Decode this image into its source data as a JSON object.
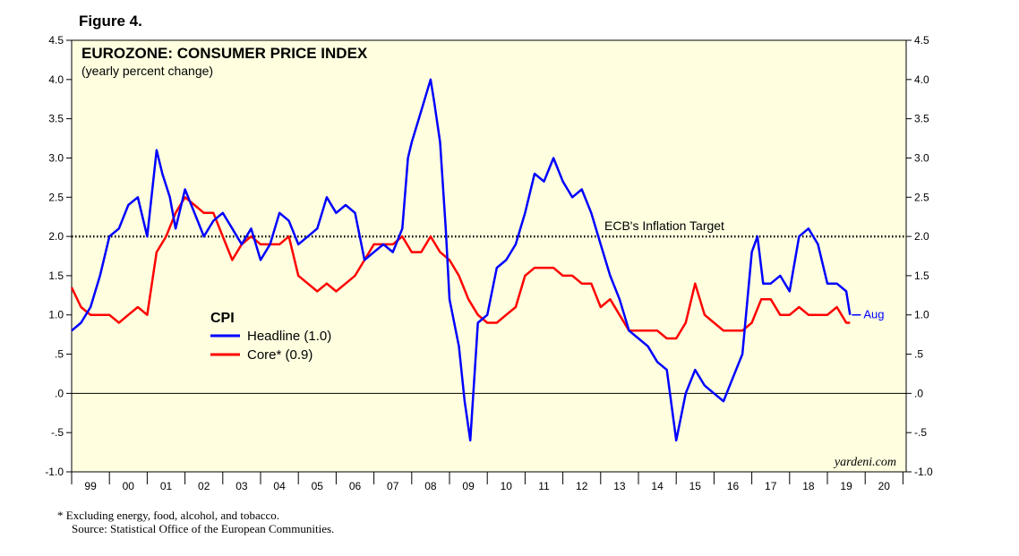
{
  "figure_label": "Figure 4.",
  "footnote": "*   Excluding energy, food, alcohol, and tobacco.",
  "source": "Source: Statistical Office of the European Communities.",
  "colors": {
    "plot_bg": "#FFFFE0",
    "headline": "#0000FF",
    "core": "#FF0000"
  },
  "chart_data": {
    "type": "line",
    "title": "EUROZONE: CONSUMER PRICE INDEX",
    "subtitle": "(yearly percent change)",
    "xlabel": "",
    "ylabel": "",
    "ylim": [
      -1.0,
      4.5
    ],
    "xlim": [
      1999.0,
      2020.75
    ],
    "y_ticks_left": [
      "4.5",
      "4.0",
      "3.5",
      "3.0",
      "2.5",
      "2.0",
      "1.5",
      "1.0",
      ".5",
      ".0",
      "-.5",
      "-1.0"
    ],
    "y_ticks_right": [
      "4.5",
      "4.0",
      "3.5",
      "3.0",
      "2.5",
      "2.0",
      "1.5",
      "1.0",
      ".5",
      ".0",
      "-.5",
      "-1.0"
    ],
    "x_tick_labels": [
      "99",
      "00",
      "01",
      "02",
      "03",
      "04",
      "05",
      "06",
      "07",
      "08",
      "09",
      "10",
      "11",
      "12",
      "13",
      "14",
      "15",
      "16",
      "17",
      "18",
      "19",
      "20"
    ],
    "reference_line": {
      "value": 2.0,
      "label": "ECB's Inflation Target"
    },
    "zero_line": 0.0,
    "legend": {
      "title": "CPI",
      "position": "center-left"
    },
    "end_label": "Aug",
    "watermark": "yardeni.com",
    "series": [
      {
        "name": "Headline (1.0)",
        "x": [
          1999.0,
          1999.25,
          1999.5,
          1999.75,
          2000.0,
          2000.25,
          2000.5,
          2000.75,
          2001.0,
          2001.25,
          2001.4,
          2001.6,
          2001.75,
          2002.0,
          2002.25,
          2002.5,
          2002.75,
          2003.0,
          2003.25,
          2003.5,
          2003.75,
          2004.0,
          2004.25,
          2004.5,
          2004.75,
          2005.0,
          2005.25,
          2005.5,
          2005.75,
          2006.0,
          2006.25,
          2006.5,
          2006.75,
          2007.0,
          2007.25,
          2007.5,
          2007.75,
          2007.9,
          2008.0,
          2008.25,
          2008.5,
          2008.6,
          2008.75,
          2008.9,
          2009.0,
          2009.25,
          2009.4,
          2009.55,
          2009.75,
          2010.0,
          2010.25,
          2010.5,
          2010.75,
          2011.0,
          2011.25,
          2011.5,
          2011.75,
          2012.0,
          2012.25,
          2012.5,
          2012.75,
          2013.0,
          2013.25,
          2013.5,
          2013.75,
          2014.0,
          2014.25,
          2014.5,
          2014.75,
          2015.0,
          2015.25,
          2015.5,
          2015.75,
          2016.0,
          2016.25,
          2016.5,
          2016.75,
          2017.0,
          2017.15,
          2017.3,
          2017.5,
          2017.75,
          2018.0,
          2018.25,
          2018.5,
          2018.75,
          2019.0,
          2019.25,
          2019.5,
          2019.6
        ],
        "values": [
          0.8,
          0.9,
          1.1,
          1.5,
          2.0,
          2.1,
          2.4,
          2.5,
          2.0,
          3.1,
          2.8,
          2.5,
          2.1,
          2.6,
          2.3,
          2.0,
          2.2,
          2.3,
          2.1,
          1.9,
          2.1,
          1.7,
          1.9,
          2.3,
          2.2,
          1.9,
          2.0,
          2.1,
          2.5,
          2.3,
          2.4,
          2.3,
          1.7,
          1.8,
          1.9,
          1.8,
          2.1,
          3.0,
          3.2,
          3.6,
          4.0,
          3.7,
          3.2,
          2.1,
          1.2,
          0.6,
          -0.1,
          -0.6,
          0.9,
          1.0,
          1.6,
          1.7,
          1.9,
          2.3,
          2.8,
          2.7,
          3.0,
          2.7,
          2.5,
          2.6,
          2.3,
          1.9,
          1.5,
          1.2,
          0.8,
          0.7,
          0.6,
          0.4,
          0.3,
          -0.6,
          0.0,
          0.3,
          0.1,
          0.0,
          -0.1,
          0.2,
          0.5,
          1.8,
          2.0,
          1.4,
          1.4,
          1.5,
          1.3,
          2.0,
          2.1,
          1.9,
          1.4,
          1.4,
          1.3,
          1.0
        ]
      },
      {
        "name": "Core* (0.9)",
        "x": [
          1999.0,
          1999.25,
          1999.5,
          1999.75,
          2000.0,
          2000.25,
          2000.5,
          2000.75,
          2001.0,
          2001.25,
          2001.5,
          2001.75,
          2002.0,
          2002.25,
          2002.5,
          2002.75,
          2003.0,
          2003.25,
          2003.5,
          2003.75,
          2004.0,
          2004.25,
          2004.5,
          2004.75,
          2005.0,
          2005.25,
          2005.5,
          2005.75,
          2006.0,
          2006.25,
          2006.5,
          2006.75,
          2007.0,
          2007.25,
          2007.5,
          2007.75,
          2008.0,
          2008.25,
          2008.5,
          2008.75,
          2009.0,
          2009.25,
          2009.5,
          2009.75,
          2010.0,
          2010.25,
          2010.5,
          2010.75,
          2011.0,
          2011.25,
          2011.5,
          2011.75,
          2012.0,
          2012.25,
          2012.5,
          2012.75,
          2013.0,
          2013.25,
          2013.5,
          2013.75,
          2014.0,
          2014.25,
          2014.5,
          2014.75,
          2015.0,
          2015.25,
          2015.5,
          2015.75,
          2016.0,
          2016.25,
          2016.5,
          2016.75,
          2017.0,
          2017.25,
          2017.5,
          2017.75,
          2018.0,
          2018.25,
          2018.5,
          2018.75,
          2019.0,
          2019.25,
          2019.5,
          2019.6
        ],
        "values": [
          1.35,
          1.1,
          1.0,
          1.0,
          1.0,
          0.9,
          1.0,
          1.1,
          1.0,
          1.8,
          2.0,
          2.3,
          2.5,
          2.4,
          2.3,
          2.3,
          2.0,
          1.7,
          1.9,
          2.0,
          1.9,
          1.9,
          1.9,
          2.0,
          1.5,
          1.4,
          1.3,
          1.4,
          1.3,
          1.4,
          1.5,
          1.7,
          1.9,
          1.9,
          1.9,
          2.0,
          1.8,
          1.8,
          2.0,
          1.8,
          1.7,
          1.5,
          1.2,
          1.0,
          0.9,
          0.9,
          1.0,
          1.1,
          1.5,
          1.6,
          1.6,
          1.6,
          1.5,
          1.5,
          1.4,
          1.4,
          1.1,
          1.2,
          1.0,
          0.8,
          0.8,
          0.8,
          0.8,
          0.7,
          0.7,
          0.9,
          1.4,
          1.0,
          0.9,
          0.8,
          0.8,
          0.8,
          0.9,
          1.2,
          1.2,
          1.0,
          1.0,
          1.1,
          1.0,
          1.0,
          1.0,
          1.1,
          0.9,
          0.9
        ]
      }
    ]
  }
}
